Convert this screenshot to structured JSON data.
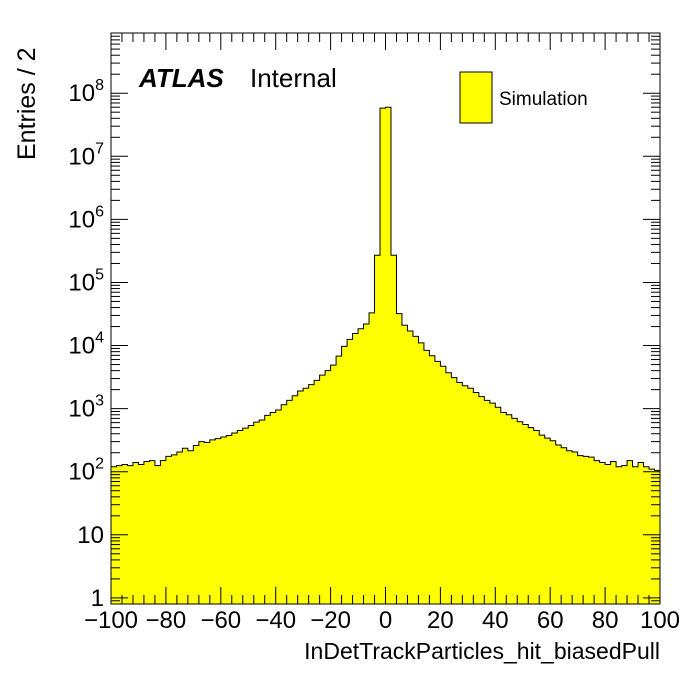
{
  "chart_data": {
    "type": "histogram",
    "ylabel": "Entries / 2",
    "xlabel": "InDetTrackParticles_hit_biasedPull",
    "experiment_label": "ATLAS",
    "status_label": "Internal",
    "legend": {
      "entries": [
        "Simulation"
      ],
      "placement": "top-right"
    },
    "x_range": [
      -100,
      100
    ],
    "y_range": [
      0.8,
      900000000
    ],
    "y_scale": "log",
    "grid": false,
    "bin_width": 2,
    "fill_color": "#ffff00",
    "line_color": "#000000",
    "x_tick_labels": [
      "−100",
      "−80",
      "−60",
      "−40",
      "−20",
      "0",
      "20",
      "40",
      "60",
      "80",
      "100"
    ],
    "x_tick_values": [
      -100,
      -80,
      -60,
      -40,
      -20,
      0,
      20,
      40,
      60,
      80,
      100
    ],
    "y_ticks": [
      {
        "value": 1,
        "base": "1",
        "exp": ""
      },
      {
        "value": 10,
        "base": "10",
        "exp": ""
      },
      {
        "value": 100,
        "base": "10",
        "exp": "2"
      },
      {
        "value": 1000,
        "base": "10",
        "exp": "3"
      },
      {
        "value": 10000,
        "base": "10",
        "exp": "4"
      },
      {
        "value": 100000,
        "base": "10",
        "exp": "5"
      },
      {
        "value": 1000000,
        "base": "10",
        "exp": "6"
      },
      {
        "value": 10000000,
        "base": "10",
        "exp": "7"
      },
      {
        "value": 100000000,
        "base": "10",
        "exp": "8"
      }
    ],
    "series": [
      {
        "name": "Simulation",
        "bin_edges_low": [
          -100,
          -98,
          -96,
          -94,
          -92,
          -90,
          -88,
          -86,
          -84,
          -82,
          -80,
          -78,
          -76,
          -74,
          -72,
          -70,
          -68,
          -66,
          -64,
          -62,
          -60,
          -58,
          -56,
          -54,
          -52,
          -50,
          -48,
          -46,
          -44,
          -42,
          -40,
          -38,
          -36,
          -34,
          -32,
          -30,
          -28,
          -26,
          -24,
          -22,
          -20,
          -18,
          -16,
          -14,
          -12,
          -10,
          -8,
          -6,
          -4,
          -2,
          0,
          2,
          4,
          6,
          8,
          10,
          12,
          14,
          16,
          18,
          20,
          22,
          24,
          26,
          28,
          30,
          32,
          34,
          36,
          38,
          40,
          42,
          44,
          46,
          48,
          50,
          52,
          54,
          56,
          58,
          60,
          62,
          64,
          66,
          68,
          70,
          72,
          74,
          76,
          78,
          80,
          82,
          84,
          86,
          88,
          90,
          92,
          94,
          96,
          98
        ],
        "values": [
          120,
          125,
          130,
          125,
          140,
          130,
          145,
          150,
          125,
          150,
          175,
          185,
          205,
          235,
          215,
          260,
          300,
          290,
          320,
          335,
          355,
          375,
          410,
          450,
          490,
          540,
          610,
          660,
          780,
          870,
          950,
          1150,
          1350,
          1600,
          1900,
          2100,
          2400,
          2800,
          3400,
          4000,
          4900,
          6800,
          9700,
          12500,
          15500,
          18500,
          22000,
          33000,
          270000,
          58000000,
          60000000,
          270000,
          32000,
          21000,
          17000,
          14000,
          11000,
          8400,
          6900,
          5600,
          4700,
          3700,
          3100,
          2600,
          2300,
          2100,
          1800,
          1550,
          1350,
          1220,
          1050,
          870,
          800,
          700,
          620,
          560,
          500,
          450,
          380,
          340,
          310,
          265,
          240,
          215,
          205,
          180,
          175,
          170,
          150,
          140,
          130,
          145,
          120,
          125,
          150,
          120,
          140,
          120,
          110,
          105
        ]
      }
    ]
  }
}
